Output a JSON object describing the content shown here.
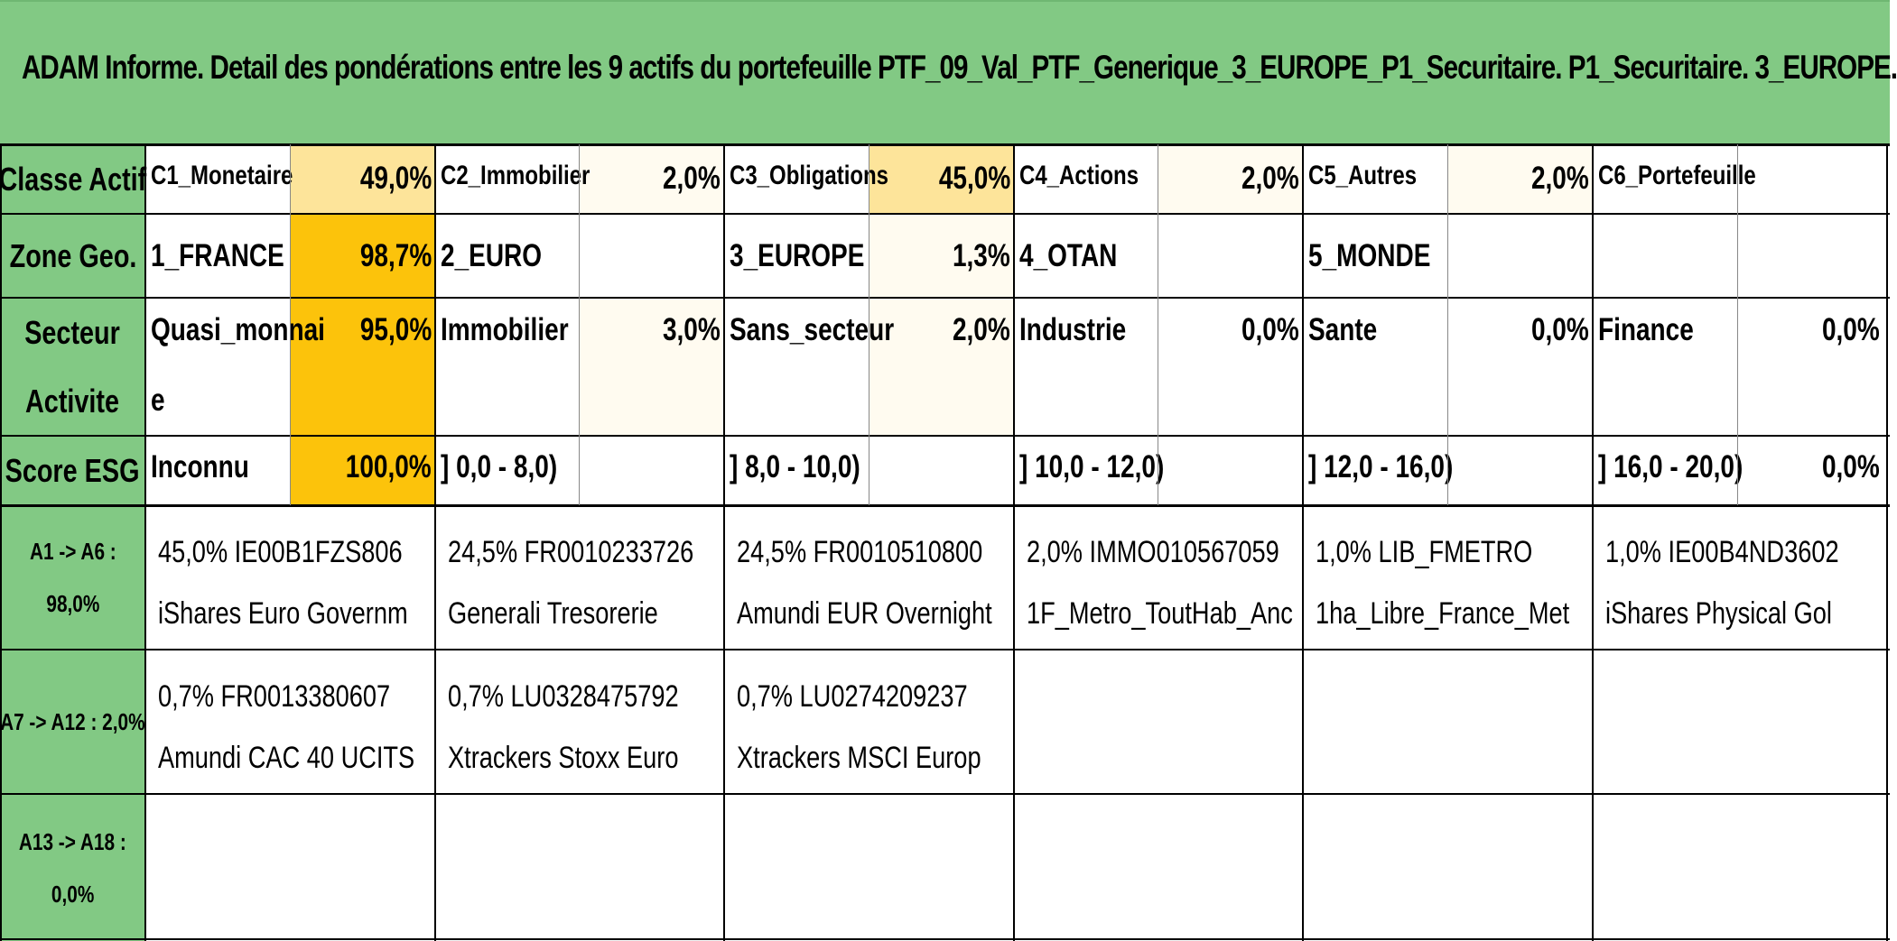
{
  "title": "ADAM Informe. Detail des pondérations entre les 9 actifs du portefeuille PTF_09_Val_PTF_Generique_3_EUROPE_P1_Securitaire. P1_Securitaire. 3_EUROPE.",
  "colors": {
    "header_green": "#82c984",
    "highlight_dark": "#fcc30b",
    "highlight_light": "#fde49a",
    "highlight_pale": "#fffbf0"
  },
  "rows": {
    "classe_actif": {
      "label": "Classe Actif",
      "cells": [
        {
          "name": "C1_Monetaire",
          "value": "49,0%"
        },
        {
          "name": "C2_Immobilier",
          "value": "2,0%"
        },
        {
          "name": "C3_Obligations",
          "value": "45,0%"
        },
        {
          "name": "C4_Actions",
          "value": "2,0%"
        },
        {
          "name": "C5_Autres",
          "value": "2,0%"
        },
        {
          "name": "C6_Portefeuille",
          "value": ""
        }
      ]
    },
    "zone_geo": {
      "label": "Zone Geo.",
      "cells": [
        {
          "name": "1_FRANCE",
          "value": "98,7%"
        },
        {
          "name": "2_EURO",
          "value": ""
        },
        {
          "name": "3_EUROPE",
          "value": "1,3%"
        },
        {
          "name": "4_OTAN",
          "value": ""
        },
        {
          "name": "5_MONDE",
          "value": ""
        },
        {
          "name": "",
          "value": ""
        }
      ]
    },
    "secteur_activite": {
      "label_line1": "Secteur",
      "label_line2": "Activite",
      "cells": [
        {
          "name": "Quasi_monnai",
          "name_wrap": "e",
          "value": "95,0%"
        },
        {
          "name": "Immobilier",
          "value": "3,0%"
        },
        {
          "name": "Sans_secteur",
          "value": "2,0%"
        },
        {
          "name": "Industrie",
          "value": "0,0%"
        },
        {
          "name": "Sante",
          "value": "0,0%"
        },
        {
          "name": "Finance",
          "value": "0,0%"
        }
      ]
    },
    "score_esg": {
      "label": "Score ESG",
      "cells": [
        {
          "name": "Inconnu",
          "value": "100,0%"
        },
        {
          "name": "] 0,0 - 8,0)",
          "value": ""
        },
        {
          "name": "] 8,0 - 10,0)",
          "value": ""
        },
        {
          "name": "] 10,0 - 12,0)",
          "value": ""
        },
        {
          "name": "] 12,0 - 16,0)",
          "value": ""
        },
        {
          "name": "] 16,0 - 20,0)",
          "value": "0,0%"
        }
      ]
    }
  },
  "asset_groups": [
    {
      "label_line1": "A1 -> A6 :",
      "label_line2": "98,0%",
      "assets": [
        {
          "line1": "45,0% IE00B1FZS806",
          "line2": "iShares Euro Governm"
        },
        {
          "line1": "24,5% FR0010233726",
          "line2": "Generali Tresorerie"
        },
        {
          "line1": "24,5% FR0010510800",
          "line2": "Amundi EUR Overnight"
        },
        {
          "line1": "2,0% IMMO010567059",
          "line2": "1F_Metro_ToutHab_Anc"
        },
        {
          "line1": "1,0% LIB_FMETRO",
          "line2": "1ha_Libre_France_Met"
        },
        {
          "line1": "1,0% IE00B4ND3602",
          "line2": "iShares Physical Gol"
        }
      ]
    },
    {
      "label_line1": "A7 -> A12 : 2,0%",
      "label_line2": "",
      "assets": [
        {
          "line1": "0,7% FR0013380607",
          "line2": "Amundi CAC 40 UCITS"
        },
        {
          "line1": "0,7% LU0328475792",
          "line2": "Xtrackers Stoxx Euro"
        },
        {
          "line1": "0,7% LU0274209237",
          "line2": "Xtrackers MSCI Europ"
        },
        {
          "line1": "",
          "line2": ""
        },
        {
          "line1": "",
          "line2": ""
        },
        {
          "line1": "",
          "line2": ""
        }
      ]
    },
    {
      "label_line1": "A13 -> A18 :",
      "label_line2": "0,0%",
      "assets": [
        {
          "line1": "",
          "line2": ""
        },
        {
          "line1": "",
          "line2": ""
        },
        {
          "line1": "",
          "line2": ""
        },
        {
          "line1": "",
          "line2": ""
        },
        {
          "line1": "",
          "line2": ""
        },
        {
          "line1": "",
          "line2": ""
        }
      ]
    }
  ]
}
